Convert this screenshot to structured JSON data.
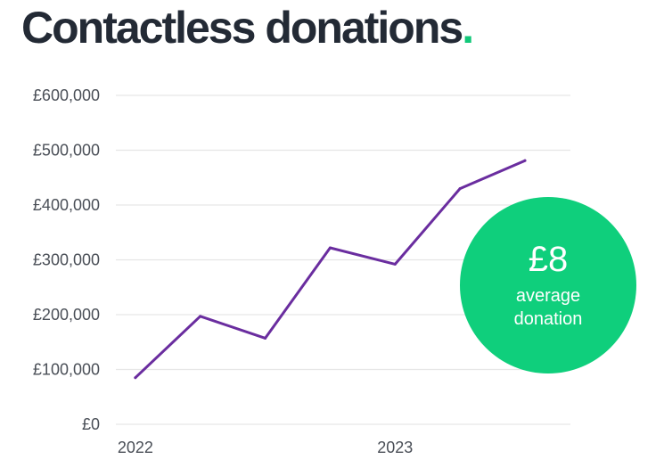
{
  "title": "Contactless donations",
  "title_dot": ".",
  "colors": {
    "line": "#6a2d9f",
    "accent": "#12c879",
    "badge": "#0fcf7c",
    "grid": "#e6e6e6"
  },
  "badge": {
    "value": "£8",
    "label": "average donation"
  },
  "chart_data": {
    "type": "line",
    "title": "Contactless donations",
    "xlabel": "",
    "ylabel": "",
    "x_ticks": [
      {
        "label": "2022",
        "x": 0
      },
      {
        "label": "2023",
        "x": 4
      }
    ],
    "xlim": [
      -0.3,
      6.7
    ],
    "ylim": [
      0,
      600000
    ],
    "y_ticks": [
      0,
      100000,
      200000,
      300000,
      400000,
      500000,
      600000
    ],
    "y_tick_labels": [
      "£0",
      "£100,000",
      "£200,000",
      "£300,000",
      "£400,000",
      "£500,000",
      "£600,000"
    ],
    "grid": true,
    "series": [
      {
        "values": [
          {
            "x": 0,
            "y": 85000
          },
          {
            "x": 1,
            "y": 197000
          },
          {
            "x": 2,
            "y": 157000
          },
          {
            "x": 3,
            "y": 322000
          },
          {
            "x": 4,
            "y": 292000
          },
          {
            "x": 5,
            "y": 430000
          },
          {
            "x": 6,
            "y": 481000
          }
        ]
      }
    ]
  }
}
